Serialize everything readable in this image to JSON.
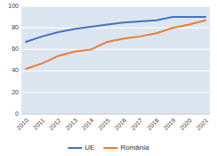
{
  "chart_data": {
    "type": "line",
    "x": [
      2010,
      2011,
      2012,
      2013,
      2014,
      2015,
      2016,
      2017,
      2018,
      2019,
      2020,
      2021
    ],
    "series": [
      {
        "name": "UE",
        "color": "#4472C4",
        "values": [
          67,
          72,
          76,
          79,
          81,
          83,
          85,
          86,
          87,
          90,
          90,
          90
        ]
      },
      {
        "name": "România",
        "color": "#ED7D31",
        "values": [
          42,
          47,
          54,
          58,
          60,
          67,
          70,
          72,
          75,
          80,
          83,
          87
        ]
      }
    ],
    "xlim": [
      2010,
      2021
    ],
    "xticks": [
      2010,
      2011,
      2012,
      2013,
      2014,
      2015,
      2016,
      2017,
      2018,
      2019,
      2020,
      2021
    ],
    "ylim": [
      0,
      100
    ],
    "yticks": [
      0,
      20,
      40,
      60,
      80,
      100
    ],
    "grid": true,
    "legend": "bottom"
  }
}
